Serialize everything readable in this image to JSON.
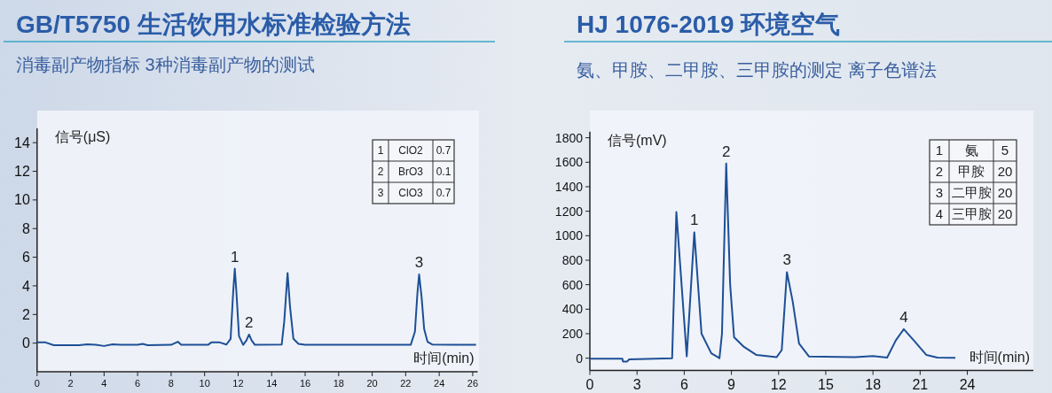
{
  "chart_data": [
    {
      "type": "line",
      "title": "GB/T5750 生活饮用水标准检验方法",
      "subtitle": "消毒副产物指标 3种消毒副产物的测试",
      "xlabel": "时间(min)",
      "ylabel": "信号(μS)",
      "xlim": [
        0,
        26.3
      ],
      "ylim": [
        -2,
        15
      ],
      "xticks": [
        0,
        2,
        4,
        6,
        8,
        10,
        12,
        14,
        16,
        18,
        20,
        22,
        24,
        26
      ],
      "yticks": [
        0,
        2,
        4,
        6,
        8,
        10,
        12,
        14
      ],
      "series": [
        {
          "color": "#1d4f96",
          "x": [
            0,
            0.5,
            1,
            2.5,
            3,
            3.5,
            4,
            4.5,
            5,
            6,
            6.3,
            6.6,
            8,
            8.4,
            8.6,
            10.2,
            10.4,
            10.9,
            11.3,
            11.55,
            11.7,
            11.8,
            11.9,
            12.05,
            12.3,
            12.5,
            12.65,
            12.8,
            13,
            14.6,
            14.75,
            14.95,
            15.1,
            15.3,
            15.6,
            16,
            22.3,
            22.55,
            22.7,
            22.8,
            22.95,
            23.1,
            23.3,
            23.6,
            26.2
          ],
          "values": [
            0.05,
            0.05,
            -0.15,
            -0.15,
            -0.08,
            -0.12,
            -0.2,
            -0.08,
            -0.12,
            -0.12,
            -0.05,
            -0.15,
            -0.12,
            0.1,
            -0.12,
            -0.12,
            0.05,
            0.05,
            -0.1,
            0.3,
            3.5,
            5.2,
            3.5,
            0.5,
            -0.12,
            0.2,
            0.6,
            0.2,
            -0.12,
            -0.1,
            1.5,
            4.9,
            2.5,
            0.3,
            -0.05,
            -0.12,
            -0.12,
            0.8,
            3.5,
            4.8,
            3.2,
            1,
            0.1,
            -0.1,
            -0.12
          ]
        }
      ],
      "annotations": [
        {
          "text": "1",
          "x": 11.8,
          "y": 5.2
        },
        {
          "text": "2",
          "x": 12.65,
          "y": 0.6
        },
        {
          "text": "3",
          "x": 22.8,
          "y": 4.8
        },
        "1",
        "ClO2",
        "0.7",
        "2",
        "BrO3",
        "0.1",
        "3",
        "ClO3",
        "0.7"
      ]
    },
    {
      "type": "line",
      "title": "HJ 1076-2019 环境空气",
      "subtitle": "氨、甲胺、二甲胺、三甲胺的测定  离子色谱法",
      "xlabel": "时间(min)",
      "ylabel": "信号(mV)",
      "xlim": [
        0,
        28.2
      ],
      "ylim": [
        -100,
        1850
      ],
      "xticks": [
        0,
        3,
        6,
        9,
        12,
        15,
        18,
        21,
        24
      ],
      "yticks": [
        0,
        200,
        400,
        600,
        800,
        1000,
        1200,
        1400,
        1600,
        1800
      ],
      "series": [
        {
          "color": "#1d4f96",
          "x": [
            0,
            2.07,
            2.1,
            2.37,
            2.5,
            5.23,
            5.5,
            6.16,
            6.64,
            7.1,
            7.72,
            8.24,
            8.4,
            8.67,
            8.92,
            9.17,
            9.8,
            10.6,
            11.87,
            12.2,
            12.53,
            12.9,
            13.3,
            13.94,
            16.85,
            18,
            18.9,
            19.45,
            19.96,
            20.6,
            21.4,
            22.1,
            23.24
          ],
          "values": [
            -5,
            -5,
            -27,
            -27,
            -10,
            0,
            1194,
            15,
            1028,
            200,
            40,
            0,
            200,
            1589,
            600,
            171,
            92,
            26,
            8,
            66,
            703,
            461,
            119,
            13,
            8,
            18,
            5,
            145,
            237,
            145,
            26,
            5,
            3
          ]
        }
      ],
      "annotations": [
        {
          "text": "1",
          "x": 6.64,
          "y": 1028
        },
        {
          "text": "2",
          "x": 8.67,
          "y": 1589
        },
        {
          "text": "3",
          "x": 12.53,
          "y": 703
        },
        {
          "text": "4",
          "x": 19.96,
          "y": 237
        },
        "1",
        "氨",
        "5",
        "2",
        "甲胺",
        "20",
        "3",
        "二甲胺",
        "20",
        "4",
        "三甲胺",
        "20"
      ]
    }
  ]
}
